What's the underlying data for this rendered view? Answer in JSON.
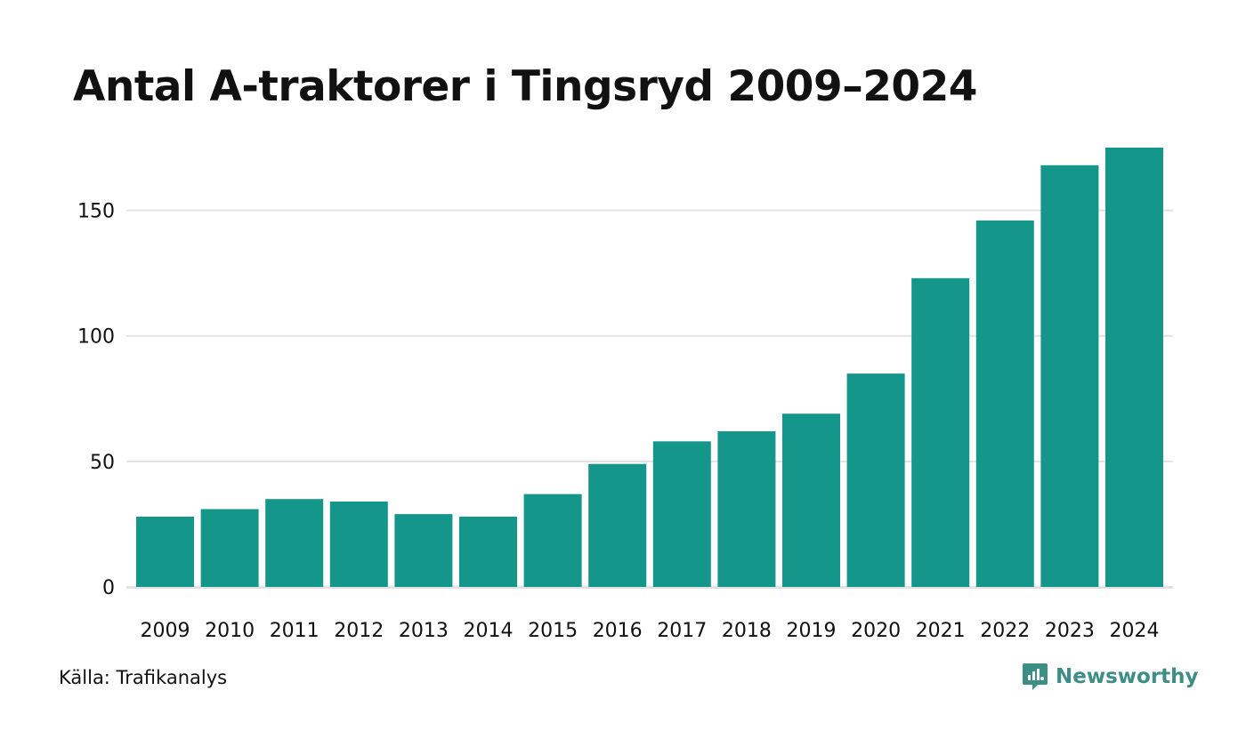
{
  "chart_data": {
    "type": "bar",
    "title": "Antal A-traktorer i Tingsryd 2009–2024",
    "xlabel": "",
    "ylabel": "",
    "categories": [
      "2009",
      "2010",
      "2011",
      "2012",
      "2013",
      "2014",
      "2015",
      "2016",
      "2017",
      "2018",
      "2019",
      "2020",
      "2021",
      "2022",
      "2023",
      "2024"
    ],
    "values": [
      28,
      31,
      35,
      34,
      29,
      28,
      37,
      49,
      58,
      62,
      69,
      85,
      123,
      146,
      168,
      175
    ],
    "ylim": [
      0,
      175
    ],
    "yticks": [
      0,
      50,
      100,
      150
    ],
    "ytick_labels": [
      "0",
      "50",
      "100",
      "150"
    ],
    "grid": true,
    "legend": "none",
    "bar_color": "#14968a",
    "grid_color": "#e2e2e2"
  },
  "footer": {
    "source": "Källa: Trafikanalys",
    "brand": "Newsworthy",
    "brand_color": "#3d8f85"
  },
  "icons": {
    "brand_logo": "newsworthy-logo-icon"
  }
}
